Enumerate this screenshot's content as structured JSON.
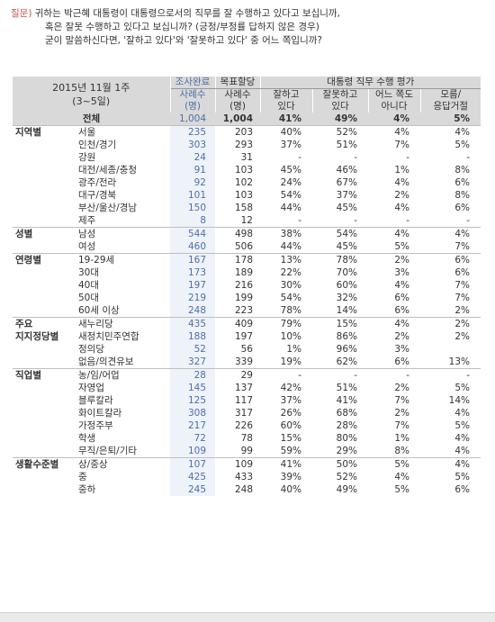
{
  "question": {
    "label": "질문)",
    "line1": "귀하는 박근혜 대통령이 대통령으로서의 직무를 잘 수행하고 있다고 보십니까,",
    "line2": "혹은 잘못 수행하고 있다고 보십니까? (긍정/부정률 답하지 않은 경우)",
    "line3": "굳이 말씀하신다면, '잘하고 있다'와 '잘못하고 있다' 중 어느 쪽입니까?"
  },
  "header": {
    "period_line1": "2015년 11월 1주",
    "period_line2": "(3~5일)",
    "completed_top": "조사완료",
    "completed_line1": "사례수",
    "completed_line2": "(명)",
    "target_top": "목표할당",
    "target_line1": "사례수",
    "target_line2": "(명)",
    "eval_title": "대통령 직무 수행 평가",
    "cols": [
      {
        "l1": "잘하고",
        "l2": "있다"
      },
      {
        "l1": "잘못하고",
        "l2": "있다"
      },
      {
        "l1": "어느 쪽도",
        "l2": "아니다"
      },
      {
        "l1": "모름/",
        "l2": "응답거절"
      }
    ]
  },
  "total": {
    "label": "전체",
    "n1": "1,004",
    "n2": "1,004",
    "good": "41%",
    "bad": "49%",
    "neither": "4%",
    "dk": "5%"
  },
  "groups": [
    {
      "category": "지역별",
      "rows": [
        {
          "sub": "서울",
          "n1": "235",
          "n2": "203",
          "good": "40%",
          "bad": "52%",
          "neither": "4%",
          "dk": "4%"
        },
        {
          "sub": "인천/경기",
          "n1": "303",
          "n2": "293",
          "good": "37%",
          "bad": "51%",
          "neither": "7%",
          "dk": "5%"
        },
        {
          "sub": "강원",
          "n1": "24",
          "n2": "31",
          "good": "-",
          "bad": "-",
          "neither": "-",
          "dk": "-"
        },
        {
          "sub": "대전/세종/충청",
          "n1": "91",
          "n2": "103",
          "good": "45%",
          "bad": "46%",
          "neither": "1%",
          "dk": "8%"
        },
        {
          "sub": "광주/전라",
          "n1": "92",
          "n2": "102",
          "good": "24%",
          "bad": "67%",
          "neither": "4%",
          "dk": "6%"
        },
        {
          "sub": "대구/경북",
          "n1": "101",
          "n2": "103",
          "good": "54%",
          "bad": "37%",
          "neither": "2%",
          "dk": "8%"
        },
        {
          "sub": "부산/울산/경남",
          "n1": "150",
          "n2": "158",
          "good": "44%",
          "bad": "45%",
          "neither": "4%",
          "dk": "6%"
        },
        {
          "sub": "제주",
          "n1": "8",
          "n2": "12",
          "good": "-",
          "bad": "-",
          "neither": "-",
          "dk": "-"
        }
      ]
    },
    {
      "category": "성별",
      "rows": [
        {
          "sub": "남성",
          "n1": "544",
          "n2": "498",
          "good": "38%",
          "bad": "54%",
          "neither": "4%",
          "dk": "4%"
        },
        {
          "sub": "여성",
          "n1": "460",
          "n2": "506",
          "good": "44%",
          "bad": "45%",
          "neither": "5%",
          "dk": "7%"
        }
      ]
    },
    {
      "category": "연령별",
      "rows": [
        {
          "sub": "19-29세",
          "n1": "167",
          "n2": "178",
          "good": "13%",
          "bad": "78%",
          "neither": "2%",
          "dk": "6%"
        },
        {
          "sub": "30대",
          "n1": "173",
          "n2": "189",
          "good": "22%",
          "bad": "70%",
          "neither": "3%",
          "dk": "6%"
        },
        {
          "sub": "40대",
          "n1": "197",
          "n2": "216",
          "good": "30%",
          "bad": "60%",
          "neither": "4%",
          "dk": "7%"
        },
        {
          "sub": "50대",
          "n1": "219",
          "n2": "199",
          "good": "54%",
          "bad": "32%",
          "neither": "6%",
          "dk": "7%"
        },
        {
          "sub": "60세 이상",
          "n1": "248",
          "n2": "223",
          "good": "78%",
          "bad": "14%",
          "neither": "6%",
          "dk": "2%"
        }
      ]
    },
    {
      "category": "주요",
      "category2": "지지정당별",
      "rows": [
        {
          "sub": "새누리당",
          "n1": "435",
          "n2": "409",
          "good": "79%",
          "bad": "15%",
          "neither": "4%",
          "dk": "2%"
        },
        {
          "sub": "새정치민주연합",
          "n1": "188",
          "n2": "197",
          "good": "10%",
          "bad": "86%",
          "neither": "2%",
          "dk": "2%"
        },
        {
          "sub": "정의당",
          "n1": "52",
          "n2": "56",
          "good": "1%",
          "bad": "96%",
          "neither": "3%",
          "dk": ""
        },
        {
          "sub": "없음/의견유보",
          "n1": "327",
          "n2": "339",
          "good": "19%",
          "bad": "62%",
          "neither": "6%",
          "dk": "13%"
        }
      ]
    },
    {
      "category": "직업별",
      "rows": [
        {
          "sub": "농/임/어업",
          "n1": "28",
          "n2": "29",
          "good": "-",
          "bad": "-",
          "neither": "-",
          "dk": "-"
        },
        {
          "sub": "자영업",
          "n1": "145",
          "n2": "137",
          "good": "42%",
          "bad": "51%",
          "neither": "2%",
          "dk": "5%"
        },
        {
          "sub": "블루칼라",
          "n1": "125",
          "n2": "117",
          "good": "37%",
          "bad": "41%",
          "neither": "7%",
          "dk": "14%"
        },
        {
          "sub": "화이트칼라",
          "n1": "308",
          "n2": "317",
          "good": "26%",
          "bad": "68%",
          "neither": "2%",
          "dk": "4%"
        },
        {
          "sub": "가정주부",
          "n1": "217",
          "n2": "226",
          "good": "60%",
          "bad": "28%",
          "neither": "7%",
          "dk": "5%"
        },
        {
          "sub": "학생",
          "n1": "72",
          "n2": "78",
          "good": "15%",
          "bad": "80%",
          "neither": "1%",
          "dk": "4%"
        },
        {
          "sub": "무직/은퇴/기타",
          "n1": "109",
          "n2": "99",
          "good": "59%",
          "bad": "29%",
          "neither": "8%",
          "dk": "4%"
        }
      ]
    },
    {
      "category": "생활수준별",
      "rows": [
        {
          "sub": "상/중상",
          "n1": "107",
          "n2": "109",
          "good": "41%",
          "bad": "50%",
          "neither": "5%",
          "dk": "4%"
        },
        {
          "sub": "중",
          "n1": "425",
          "n2": "433",
          "good": "39%",
          "bad": "52%",
          "neither": "4%",
          "dk": "5%"
        },
        {
          "sub": "중하",
          "n1": "245",
          "n2": "248",
          "good": "40%",
          "bad": "49%",
          "neither": "5%",
          "dk": "6%"
        }
      ]
    }
  ]
}
